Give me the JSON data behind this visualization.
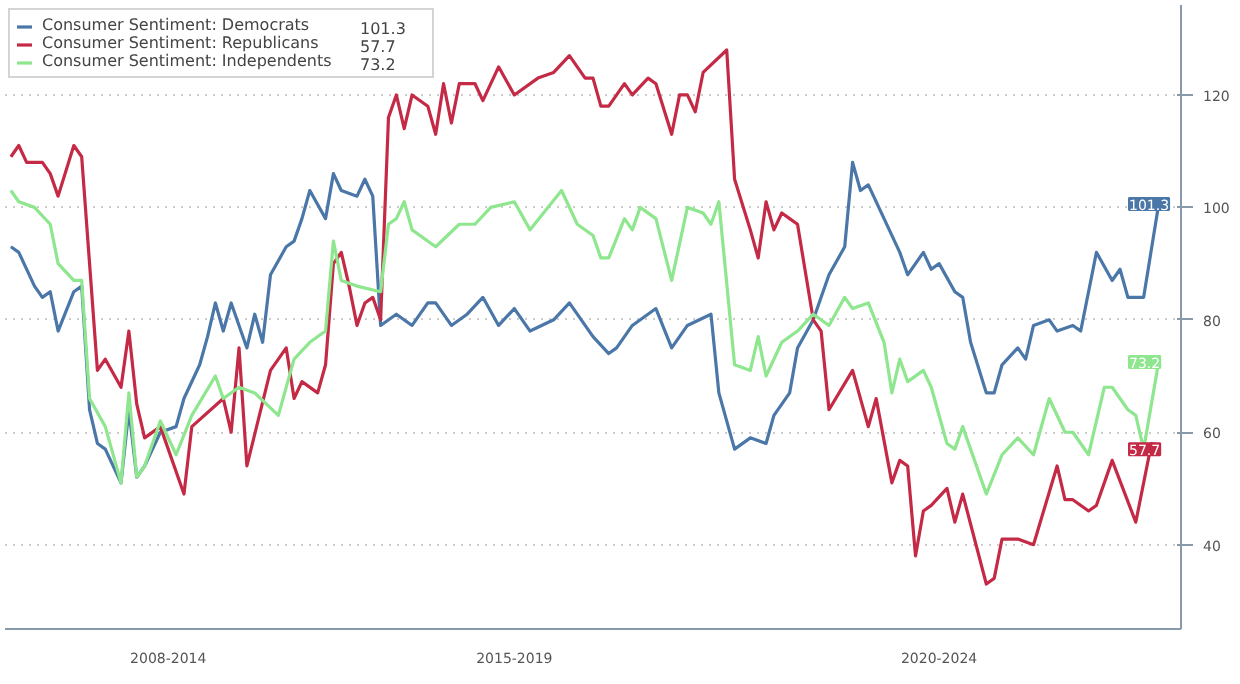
{
  "chart_data": {
    "type": "line",
    "categories": [
      null,
      null,
      null,
      null,
      null,
      null,
      null,
      null,
      null,
      null,
      null,
      null,
      null,
      null,
      null,
      null,
      null,
      null,
      null,
      null,
      "2008-2014",
      null,
      null,
      null,
      null,
      null,
      null,
      null,
      null,
      null,
      null,
      null,
      null,
      null,
      null,
      null,
      null,
      null,
      null,
      null,
      null,
      null,
      null,
      null,
      null,
      null,
      null,
      null,
      null,
      null,
      null,
      null,
      null,
      null,
      null,
      null,
      null,
      null,
      null,
      null,
      null,
      null,
      null,
      null,
      "2015-2019",
      null,
      null,
      null,
      null,
      null,
      null,
      null,
      null,
      null,
      null,
      null,
      null,
      null,
      null,
      null,
      null,
      null,
      null,
      null,
      null,
      null,
      null,
      null,
      null,
      null,
      null,
      null,
      null,
      null,
      null,
      null,
      null,
      null,
      null,
      null,
      null,
      null,
      null,
      null,
      null,
      null,
      null,
      null,
      null,
      null,
      null,
      null,
      null,
      null,
      null,
      null,
      null,
      null,
      "2020-2024",
      null,
      null,
      null,
      null,
      null,
      null,
      null,
      null,
      null,
      null,
      null,
      null,
      null,
      null,
      null,
      null,
      null,
      null,
      null,
      null,
      null,
      null,
      null,
      null,
      null,
      null,
      null,
      null
    ],
    "ylim": [
      25,
      136
    ],
    "yticks": [
      40,
      60,
      80,
      100,
      120
    ],
    "grid": "y",
    "legend": "top left",
    "series": [
      {
        "name": "Consumer Sentiment: Democrats",
        "color": "#4a77a8",
        "values": [
          93,
          92,
          null,
          86,
          84,
          85,
          78,
          null,
          85,
          86,
          64,
          58,
          57,
          null,
          51,
          64,
          52,
          54,
          null,
          60,
          null,
          61,
          66,
          null,
          72,
          77,
          83,
          78,
          83,
          null,
          75,
          81,
          76,
          88,
          null,
          93,
          94,
          98,
          103,
          null,
          98,
          106,
          103,
          null,
          102,
          105,
          102,
          79,
          null,
          81,
          null,
          79,
          null,
          83,
          83,
          null,
          79,
          null,
          81,
          null,
          84,
          null,
          79,
          null,
          82,
          null,
          78,
          null,
          null,
          80,
          null,
          83,
          null,
          null,
          77,
          null,
          74,
          75,
          null,
          79,
          null,
          null,
          82,
          null,
          75,
          null,
          79,
          null,
          null,
          81,
          67,
          null,
          57,
          null,
          59,
          null,
          58,
          63,
          null,
          67,
          75,
          null,
          80,
          null,
          88,
          null,
          93,
          108,
          103,
          104,
          null,
          98,
          null,
          92,
          88,
          null,
          92,
          89,
          90,
          null,
          85,
          84,
          76,
          null,
          67,
          67,
          72,
          null,
          75,
          73,
          79,
          null,
          80,
          78,
          null,
          79,
          78,
          null,
          92,
          null,
          87,
          89,
          84,
          null,
          84,
          null,
          101.3
        ],
        "value_labels": [
          null,
          null,
          null,
          null,
          null,
          null,
          null,
          null,
          null,
          null,
          null,
          null,
          null,
          null,
          null,
          null,
          null,
          null,
          null,
          null,
          null,
          null,
          null,
          null,
          null,
          null,
          null,
          null,
          null,
          null,
          null,
          null,
          null,
          null,
          null,
          null,
          null,
          null,
          null,
          null,
          null,
          null,
          null,
          null,
          null,
          null,
          null,
          null,
          null,
          null,
          null,
          null,
          null,
          null,
          null,
          null,
          null,
          null,
          null,
          null,
          null,
          null,
          null,
          null,
          null,
          null,
          null,
          null,
          null,
          null,
          null,
          null,
          null,
          null,
          null,
          null,
          null,
          null,
          null,
          null,
          null,
          null,
          null,
          null,
          null,
          null,
          null,
          null,
          null,
          null,
          null,
          null,
          null,
          null,
          null,
          null,
          null,
          null,
          null,
          null,
          null,
          null,
          null,
          null,
          null,
          null,
          null,
          null,
          null,
          null,
          null,
          null,
          null,
          null,
          null,
          null,
          null,
          null,
          null,
          null,
          null,
          null,
          null,
          null,
          null,
          null,
          null,
          null,
          null,
          null,
          null,
          null,
          null,
          null,
          null,
          null,
          null,
          null,
          null,
          null,
          null,
          null,
          null,
          null,
          null,
          null,
          "101.3"
        ]
      },
      {
        "name": "Consumer Sentiment: Republicans",
        "color": "#c42a45",
        "values": [
          109,
          111,
          108,
          null,
          108,
          106,
          102,
          null,
          111,
          109,
          null,
          71,
          73,
          null,
          68,
          78,
          65,
          59,
          null,
          61,
          null,
          null,
          49,
          61,
          null,
          null,
          null,
          66,
          60,
          75,
          54,
          null,
          null,
          71,
          null,
          75,
          66,
          69,
          null,
          67,
          72,
          90,
          92,
          86,
          79,
          83,
          84,
          80,
          116,
          120,
          114,
          120,
          null,
          118,
          113,
          122,
          115,
          122,
          null,
          122,
          119,
          null,
          125,
          null,
          120,
          null,
          null,
          123,
          null,
          124,
          null,
          127,
          null,
          123,
          123,
          118,
          118,
          null,
          122,
          120,
          null,
          123,
          122,
          null,
          113,
          120,
          120,
          117,
          124,
          null,
          null,
          128,
          105,
          null,
          96,
          91,
          101,
          96,
          99,
          98,
          97,
          null,
          80,
          78,
          64,
          null,
          null,
          71,
          null,
          61,
          66,
          null,
          51,
          55,
          54,
          38,
          46,
          47,
          null,
          50,
          44,
          49,
          null,
          null,
          33,
          34,
          41,
          null,
          41,
          null,
          40,
          null,
          null,
          54,
          48,
          48,
          null,
          46,
          47,
          null,
          55,
          null,
          null,
          44,
          null,
          58,
          57.7
        ],
        "value_labels": [
          null,
          null,
          null,
          null,
          null,
          null,
          null,
          null,
          null,
          null,
          null,
          null,
          null,
          null,
          null,
          null,
          null,
          null,
          null,
          null,
          null,
          null,
          null,
          null,
          null,
          null,
          null,
          null,
          null,
          null,
          null,
          null,
          null,
          null,
          null,
          null,
          null,
          null,
          null,
          null,
          null,
          null,
          null,
          null,
          null,
          null,
          null,
          null,
          null,
          null,
          null,
          null,
          null,
          null,
          null,
          null,
          null,
          null,
          null,
          null,
          null,
          null,
          null,
          null,
          null,
          null,
          null,
          null,
          null,
          null,
          null,
          null,
          null,
          null,
          null,
          null,
          null,
          null,
          null,
          null,
          null,
          null,
          null,
          null,
          null,
          null,
          null,
          null,
          null,
          null,
          null,
          null,
          null,
          null,
          null,
          null,
          null,
          null,
          null,
          null,
          null,
          null,
          null,
          null,
          null,
          null,
          null,
          null,
          null,
          null,
          null,
          null,
          null,
          null,
          null,
          null,
          null,
          null,
          null,
          null,
          null,
          null,
          null,
          null,
          null,
          null,
          null,
          null,
          null,
          null,
          null,
          null,
          null,
          null,
          null,
          null,
          null,
          null,
          null,
          null,
          null,
          null,
          null,
          null,
          null,
          null,
          "57.7"
        ]
      },
      {
        "name": "Consumer Sentiment: Independents",
        "color": "#8ee68e",
        "values": [
          103,
          101,
          null,
          100,
          null,
          97,
          90,
          null,
          87,
          87,
          66,
          null,
          61,
          null,
          51,
          67,
          52,
          54,
          null,
          62,
          null,
          56,
          null,
          63,
          null,
          null,
          70,
          66,
          null,
          68,
          null,
          67,
          null,
          null,
          63,
          null,
          73,
          null,
          76,
          null,
          78,
          94,
          87,
          null,
          86,
          null,
          null,
          85,
          97,
          98,
          101,
          96,
          null,
          null,
          93,
          null,
          null,
          97,
          null,
          97,
          null,
          100,
          null,
          null,
          101,
          null,
          96,
          null,
          null,
          null,
          103,
          null,
          97,
          null,
          95,
          91,
          91,
          null,
          98,
          96,
          100,
          null,
          98,
          null,
          87,
          null,
          100,
          null,
          99,
          97,
          101,
          null,
          72,
          null,
          71,
          77,
          70,
          null,
          76,
          null,
          78,
          null,
          81,
          null,
          79,
          null,
          84,
          82,
          null,
          83,
          null,
          76,
          67,
          73,
          69,
          null,
          71,
          68,
          null,
          58,
          57,
          61,
          null,
          null,
          49,
          null,
          56,
          null,
          59,
          null,
          56,
          null,
          66,
          null,
          60,
          60,
          null,
          56,
          null,
          68,
          68,
          null,
          64,
          63,
          57,
          null,
          73.2
        ],
        "value_labels": [
          null,
          null,
          null,
          null,
          null,
          null,
          null,
          null,
          null,
          null,
          null,
          null,
          null,
          null,
          null,
          null,
          null,
          null,
          null,
          null,
          null,
          null,
          null,
          null,
          null,
          null,
          null,
          null,
          null,
          null,
          null,
          null,
          null,
          null,
          null,
          null,
          null,
          null,
          null,
          null,
          null,
          null,
          null,
          null,
          null,
          null,
          null,
          null,
          null,
          null,
          null,
          null,
          null,
          null,
          null,
          null,
          null,
          null,
          null,
          null,
          null,
          null,
          null,
          null,
          null,
          null,
          null,
          null,
          null,
          null,
          null,
          null,
          null,
          null,
          null,
          null,
          null,
          null,
          null,
          null,
          null,
          null,
          null,
          null,
          null,
          null,
          null,
          null,
          null,
          null,
          null,
          null,
          null,
          null,
          null,
          null,
          null,
          null,
          null,
          null,
          null,
          null,
          null,
          null,
          null,
          null,
          null,
          null,
          null,
          null,
          null,
          null,
          null,
          null,
          null,
          null,
          null,
          null,
          null,
          null,
          null,
          null,
          null,
          null,
          null,
          null,
          null,
          null,
          null,
          null,
          null,
          null,
          null,
          null,
          null,
          null,
          null,
          null,
          null,
          null,
          null,
          null,
          null,
          null,
          null,
          null,
          "73.2"
        ]
      }
    ]
  }
}
